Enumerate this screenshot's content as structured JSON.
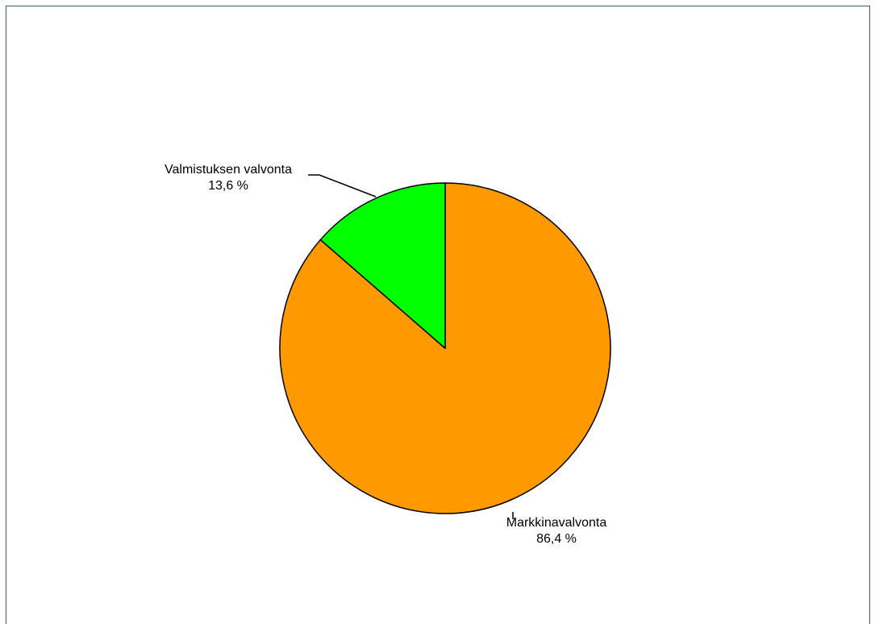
{
  "chart_data": {
    "type": "pie",
    "title": "",
    "start_angle_deg": 0,
    "direction": "clockwise",
    "slices": [
      {
        "label": "Markkinavalvonta",
        "value": 86.4,
        "value_label": "86,4 %",
        "color": "#ff9900"
      },
      {
        "label": "Valmistuksen valvonta",
        "value": 13.6,
        "value_label": "13,6 %",
        "color": "#00ff00"
      }
    ],
    "legend": "none"
  }
}
